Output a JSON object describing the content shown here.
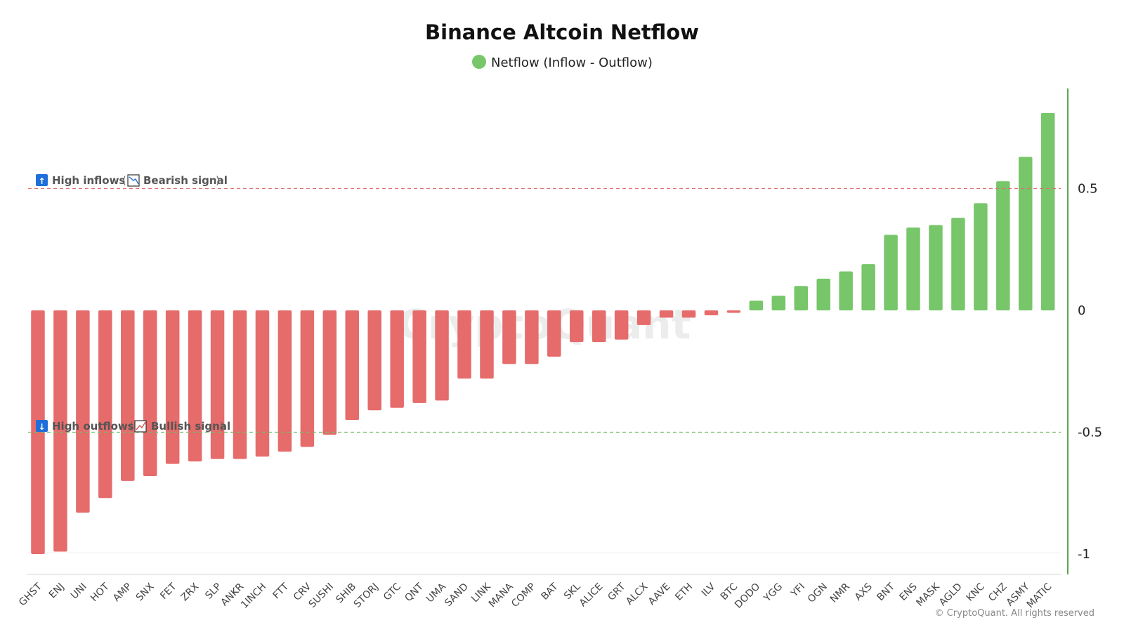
{
  "chart_data": {
    "type": "bar",
    "title": "Binance Altcoin Netflow",
    "legend": [
      {
        "label": "Netflow (Inflow - Outflow)",
        "color": "#77c66a"
      }
    ],
    "legend_position": "top-center",
    "xlabel": "",
    "ylabel": "",
    "ylim": [
      -1.1,
      0.93
    ],
    "yticks": [
      0.5,
      0,
      -0.5,
      -1
    ],
    "ytick_labels": [
      "0.5",
      "0",
      "-0.5",
      "-1"
    ],
    "categories": [
      "GHST",
      "ENJ",
      "UNI",
      "HOT",
      "AMP",
      "SNX",
      "FET",
      "ZRX",
      "SLP",
      "ANKR",
      "1INCH",
      "FTT",
      "CRV",
      "SUSHI",
      "SHIB",
      "STORJ",
      "GTC",
      "QNT",
      "UMA",
      "SAND",
      "LINK",
      "MANA",
      "COMP",
      "BAT",
      "SKL",
      "ALICE",
      "GRT",
      "ALCX",
      "AAVE",
      "ETH",
      "ILV",
      "BTC",
      "DODO",
      "YGG",
      "YFI",
      "OGN",
      "NMR",
      "AXS",
      "BNT",
      "ENS",
      "MASK",
      "AGLD",
      "KNC",
      "CHZ",
      "ASMY",
      "MATIC"
    ],
    "values": [
      -1.0,
      -0.99,
      -0.83,
      -0.77,
      -0.7,
      -0.68,
      -0.63,
      -0.62,
      -0.61,
      -0.61,
      -0.6,
      -0.58,
      -0.56,
      -0.51,
      -0.45,
      -0.41,
      -0.4,
      -0.38,
      -0.37,
      -0.28,
      -0.28,
      -0.22,
      -0.22,
      -0.19,
      -0.13,
      -0.13,
      -0.12,
      -0.06,
      -0.03,
      -0.03,
      -0.02,
      -0.01,
      0.04,
      0.06,
      0.1,
      0.13,
      0.16,
      0.19,
      0.31,
      0.34,
      0.35,
      0.38,
      0.44,
      0.53,
      0.63,
      0.81
    ],
    "positive_color": "#77c66a",
    "negative_color": "#e66b6b",
    "reference_lines": [
      {
        "value": 0.5,
        "color": "#e07070"
      },
      {
        "value": -0.5,
        "color": "#74bb68"
      }
    ],
    "annotations": {
      "high_inflows": {
        "icon": "↑",
        "label": "High inflows",
        "open": "(",
        "signal": "Bearish signal",
        "close": ")"
      },
      "high_outflows": {
        "icon": "↓",
        "label": "High outflows",
        "open": "(",
        "signal": "Bullish signal",
        "close": ")"
      }
    }
  },
  "watermark": "CryptoQuant",
  "copyright": "© CryptoQuant. All rights reserved",
  "colors": {
    "axis_line": "#5aa84d",
    "icon_bg": "#1e6fd9"
  }
}
